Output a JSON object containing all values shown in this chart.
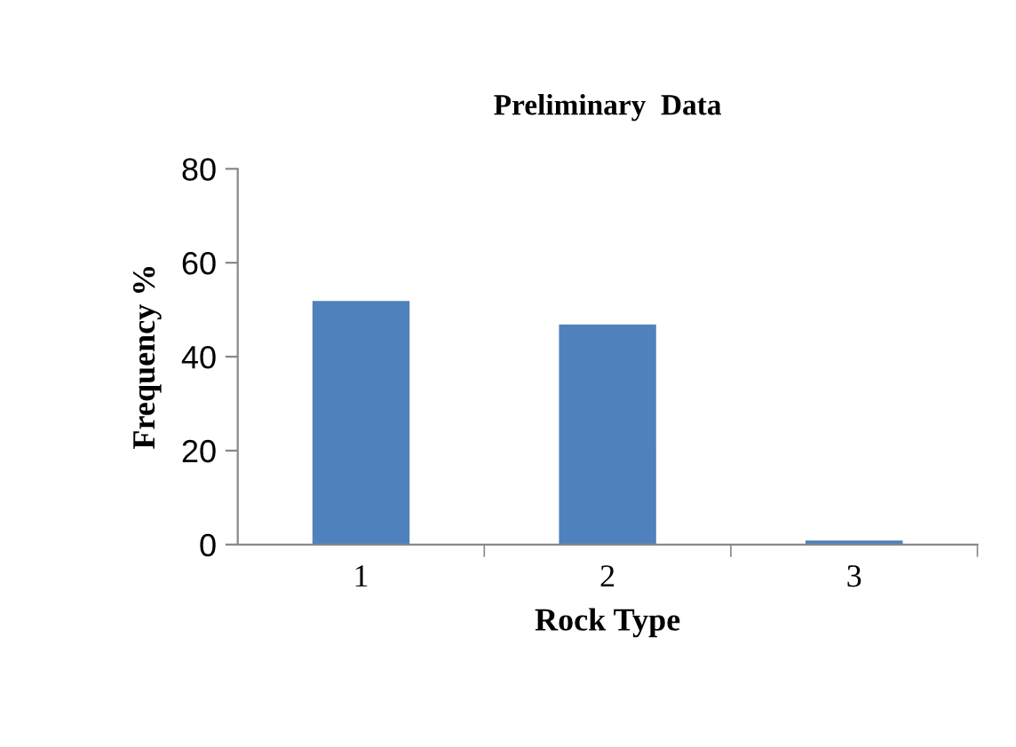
{
  "chart_data": {
    "type": "bar",
    "title": "Preliminary  Data",
    "xlabel": "Rock Type",
    "ylabel": "Frequency %",
    "categories": [
      "1",
      "2",
      "3"
    ],
    "values": [
      52,
      47,
      1
    ],
    "color": "#4f81bd",
    "ylim": [
      0,
      80
    ],
    "yticks": [
      0,
      20,
      40,
      60,
      80
    ],
    "grid": false,
    "legend": false
  }
}
